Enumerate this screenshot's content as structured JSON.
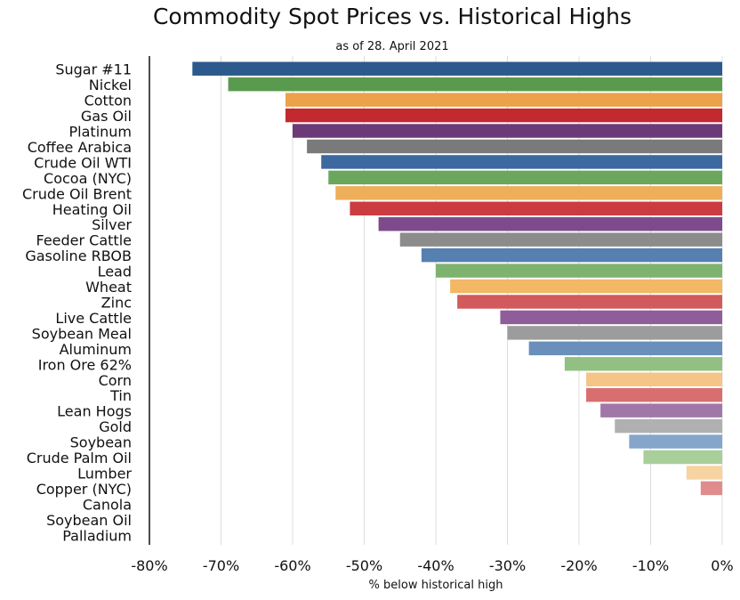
{
  "chart_data": {
    "type": "bar",
    "orientation": "horizontal",
    "title": "Commodity Spot Prices vs. Historical Highs",
    "subtitle": "as of 28. April 2021",
    "xlabel": "% below historical high",
    "ylabel": "",
    "xlim": [
      -80,
      0
    ],
    "xticks": [
      "-80%",
      "-70%",
      "-60%",
      "-50%",
      "-40%",
      "-30%",
      "-20%",
      "-10%",
      "0%"
    ],
    "xtick_values": [
      -80,
      -70,
      -60,
      -50,
      -40,
      -30,
      -20,
      -10,
      0
    ],
    "grid": "vertical",
    "legend": "none",
    "categories": [
      "Sugar #11",
      "Nickel",
      "Cotton",
      "Gas Oil",
      "Platinum",
      "Coffee Arabica",
      "Crude Oil WTI",
      "Cocoa (NYC)",
      "Crude Oil Brent",
      "Heating Oil",
      "Silver",
      "Feeder Cattle",
      "Gasoline RBOB",
      "Lead",
      "Wheat",
      "Zinc",
      "Live Cattle",
      "Soybean Meal",
      "Aluminum",
      "Iron Ore 62%",
      "Corn",
      "Tin",
      "Lean Hogs",
      "Gold",
      "Soybean",
      "Crude Palm Oil",
      "Lumber",
      "Copper (NYC)",
      "Canola",
      "Soybean Oil",
      "Palladium"
    ],
    "values": [
      -74,
      -69,
      -61,
      -61,
      -60,
      -58,
      -56,
      -55,
      -54,
      -52,
      -48,
      -45,
      -42,
      -40,
      -38,
      -37,
      -31,
      -30,
      -27,
      -22,
      -19,
      -19,
      -17,
      -15,
      -13,
      -11,
      -5,
      -3,
      0,
      0,
      0
    ],
    "colors": [
      "#2c5a8c",
      "#5a9a4e",
      "#eba24a",
      "#c3292f",
      "#6d3a78",
      "#7a7a7a",
      "#3d69a0",
      "#6aa65c",
      "#efae5a",
      "#ca3c40",
      "#7e4a8c",
      "#8c8c8c",
      "#5580b0",
      "#7eb36f",
      "#f2b866",
      "#d15a5c",
      "#8f5e9a",
      "#9c9c9c",
      "#6a8fba",
      "#92c083",
      "#f4c586",
      "#d96e70",
      "#a077a8",
      "#b0b0b0",
      "#85a5cb",
      "#a8cf9a",
      "#f7d3a2",
      "#e08c8c",
      "#c58fba",
      "#c8c8c8",
      "#a0b8d8"
    ]
  }
}
